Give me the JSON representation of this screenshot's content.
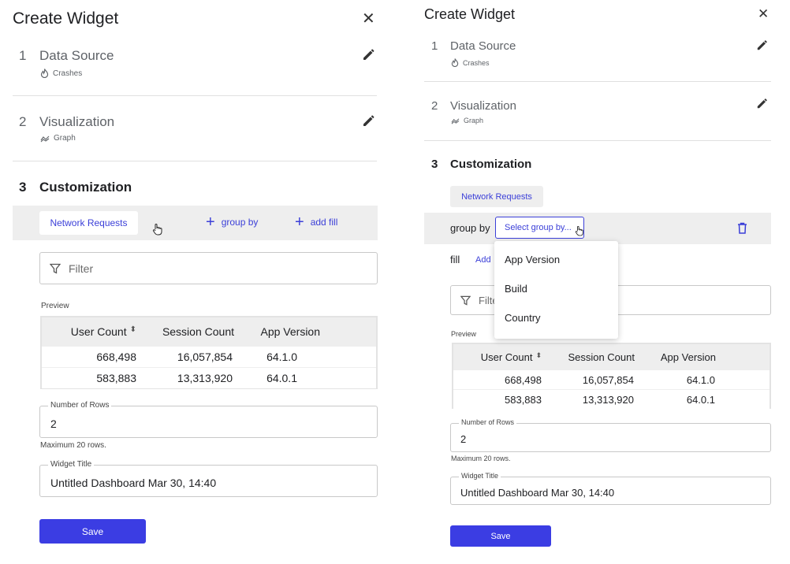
{
  "left": {
    "title": "Create Widget",
    "steps": [
      {
        "num": "1",
        "title": "Data Source",
        "sub": "Crashes"
      },
      {
        "num": "2",
        "title": "Visualization",
        "sub": "Graph"
      },
      {
        "num": "3",
        "title": "Customization"
      }
    ],
    "toolbar": {
      "metric_chip": "Network Requests",
      "group_by": "group by",
      "add_fill": "add fill"
    },
    "filter_placeholder": "Filter",
    "preview_label": "Preview",
    "table": {
      "headers": [
        "User Count",
        "Session Count",
        "App Version"
      ],
      "sort_icon": "sort-icon",
      "rows": [
        [
          "668,498",
          "16,057,854",
          "64.1.0"
        ],
        [
          "583,883",
          "13,313,920",
          "64.0.1"
        ]
      ]
    },
    "rows_field": {
      "label": "Number of Rows",
      "value": "2",
      "helper": "Maximum 20 rows."
    },
    "title_field": {
      "label": "Widget Title",
      "value": "Untitled Dashboard Mar 30, 14:40"
    },
    "save_label": "Save"
  },
  "right": {
    "title": "Create Widget",
    "steps": [
      {
        "num": "1",
        "title": "Data Source",
        "sub": "Crashes"
      },
      {
        "num": "2",
        "title": "Visualization",
        "sub": "Graph"
      },
      {
        "num": "3",
        "title": "Customization"
      }
    ],
    "metric_chip": "Network Requests",
    "group_by_label": "group by",
    "group_by_select": "Select group by...",
    "fill_label": "fill",
    "fill_add": "Add",
    "dropdown_options": [
      "App Version",
      "Build",
      "Country"
    ],
    "filter_placeholder": "Filter",
    "preview_label": "Preview",
    "table": {
      "headers": [
        "User Count",
        "Session Count",
        "App Version"
      ],
      "rows": [
        [
          "668,498",
          "16,057,854",
          "64.1.0"
        ],
        [
          "583,883",
          "13,313,920",
          "64.0.1"
        ]
      ]
    },
    "rows_field": {
      "label": "Number of Rows",
      "value": "2",
      "helper": "Maximum 20 rows."
    },
    "title_field": {
      "label": "Widget Title",
      "value": "Untitled Dashboard Mar 30, 14:40"
    },
    "save_label": "Save"
  },
  "colors": {
    "accent": "#3b3fd8",
    "save_bg": "#3b3de3",
    "toolbar_bg": "#eeeeee"
  },
  "icons": [
    "close-icon",
    "edit-icon",
    "fire-icon",
    "graph-icon",
    "filter-icon",
    "plus-icon",
    "trash-icon",
    "sort-icon",
    "hand-cursor-icon"
  ]
}
